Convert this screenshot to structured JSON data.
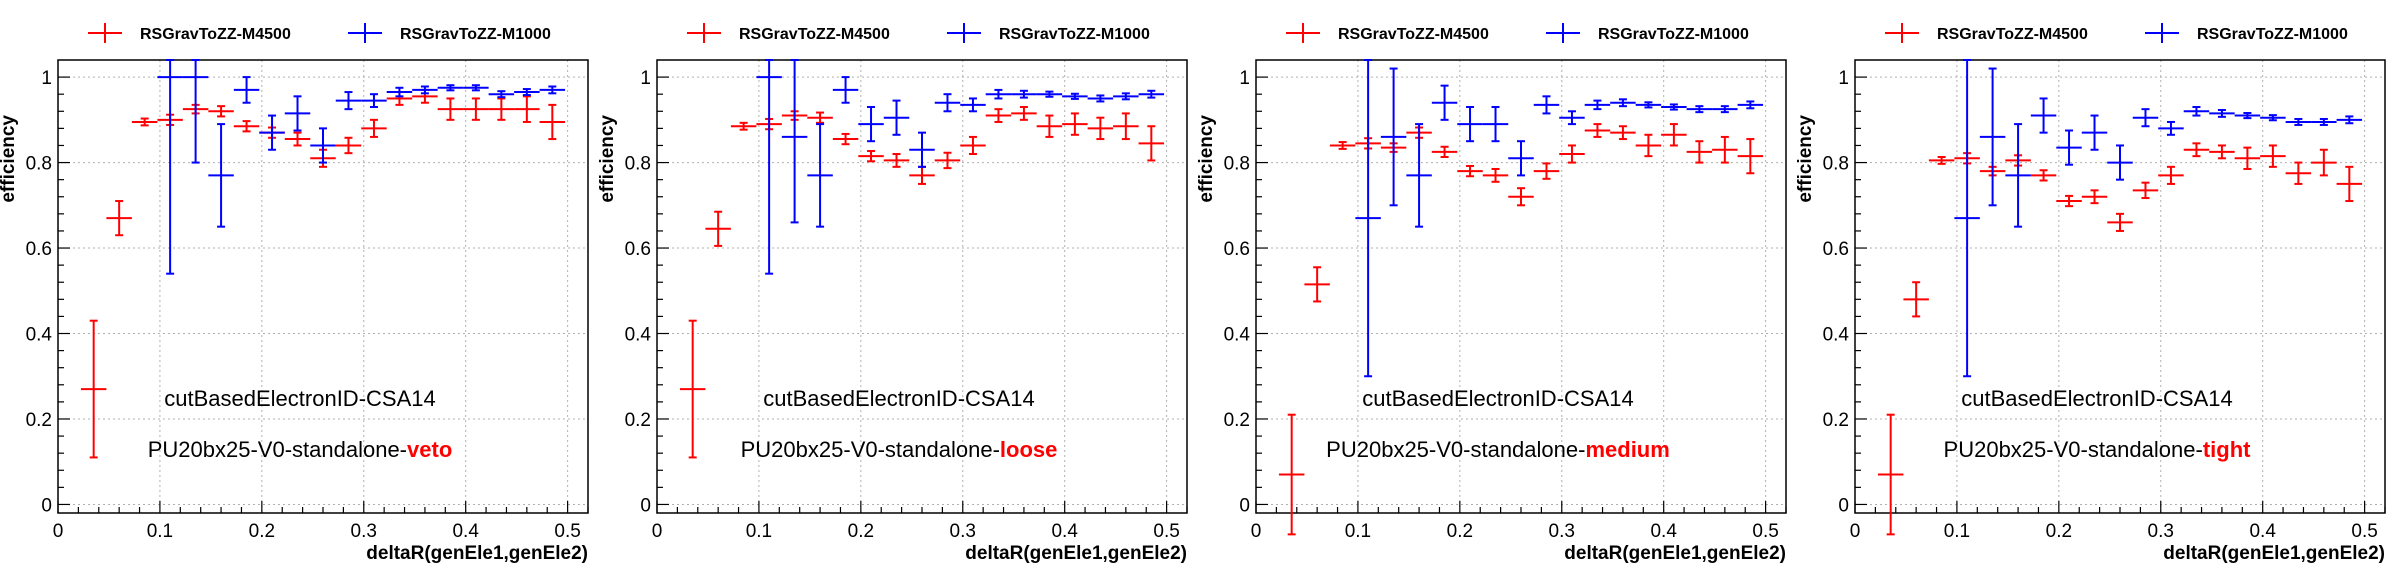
{
  "chart_data": [
    {
      "type": "scatter",
      "xlabel": "deltaR(genEle1,genEle2)",
      "ylabel": "efficiency",
      "xlim": [
        0,
        0.52
      ],
      "ylim": [
        -0.02,
        1.04
      ],
      "xticks": [
        "0",
        "0.1",
        "0.2",
        "0.3",
        "0.4",
        "0.5"
      ],
      "yticks": [
        "0",
        "0.2",
        "0.4",
        "0.6",
        "0.8",
        "1"
      ],
      "annotation_line1": "cutBasedElectronID-CSA14",
      "annotation_prefix": "PU20bx25-V0-standalone-",
      "annotation_wp": "veto",
      "legend_position": "top",
      "series": [
        {
          "name": "RSGravToZZ-M4500",
          "color": "#ff0000",
          "x": [
            0.035,
            0.06,
            0.085,
            0.11,
            0.135,
            0.16,
            0.185,
            0.21,
            0.235,
            0.26,
            0.285,
            0.31,
            0.335,
            0.36,
            0.385,
            0.41,
            0.435,
            0.46,
            0.485
          ],
          "y": [
            0.27,
            0.67,
            0.895,
            0.9,
            0.925,
            0.92,
            0.885,
            0.87,
            0.855,
            0.81,
            0.84,
            0.88,
            0.95,
            0.955,
            0.925,
            0.925,
            0.925,
            0.925,
            0.895
          ],
          "yerr": [
            0.16,
            0.04,
            0.008,
            0.012,
            0.01,
            0.012,
            0.012,
            0.012,
            0.015,
            0.02,
            0.018,
            0.02,
            0.015,
            0.015,
            0.025,
            0.025,
            0.025,
            0.03,
            0.04
          ]
        },
        {
          "name": "RSGravToZZ-M1000",
          "color": "#0000ff",
          "x": [
            0.11,
            0.135,
            0.16,
            0.185,
            0.21,
            0.235,
            0.26,
            0.285,
            0.31,
            0.335,
            0.36,
            0.385,
            0.41,
            0.435,
            0.46,
            0.485
          ],
          "y": [
            1.0,
            1.0,
            0.77,
            0.97,
            0.87,
            0.915,
            0.84,
            0.945,
            0.945,
            0.965,
            0.97,
            0.975,
            0.975,
            0.96,
            0.965,
            0.97
          ],
          "yerr": [
            0.46,
            0.2,
            0.12,
            0.03,
            0.04,
            0.04,
            0.04,
            0.02,
            0.015,
            0.01,
            0.008,
            0.006,
            0.006,
            0.007,
            0.007,
            0.008
          ]
        }
      ]
    },
    {
      "type": "scatter",
      "xlabel": "deltaR(genEle1,genEle2)",
      "ylabel": "efficiency",
      "xlim": [
        0,
        0.52
      ],
      "ylim": [
        -0.02,
        1.04
      ],
      "xticks": [
        "0",
        "0.1",
        "0.2",
        "0.3",
        "0.4",
        "0.5"
      ],
      "yticks": [
        "0",
        "0.2",
        "0.4",
        "0.6",
        "0.8",
        "1"
      ],
      "annotation_line1": "cutBasedElectronID-CSA14",
      "annotation_prefix": "PU20bx25-V0-standalone-",
      "annotation_wp": "loose",
      "legend_position": "top",
      "series": [
        {
          "name": "RSGravToZZ-M4500",
          "color": "#ff0000",
          "x": [
            0.035,
            0.06,
            0.085,
            0.11,
            0.135,
            0.16,
            0.185,
            0.21,
            0.235,
            0.26,
            0.285,
            0.31,
            0.335,
            0.36,
            0.385,
            0.41,
            0.435,
            0.46,
            0.485
          ],
          "y": [
            0.27,
            0.645,
            0.885,
            0.89,
            0.91,
            0.905,
            0.855,
            0.815,
            0.805,
            0.77,
            0.805,
            0.84,
            0.91,
            0.915,
            0.885,
            0.89,
            0.88,
            0.885,
            0.845
          ],
          "yerr": [
            0.16,
            0.04,
            0.008,
            0.012,
            0.01,
            0.012,
            0.012,
            0.012,
            0.015,
            0.02,
            0.018,
            0.02,
            0.015,
            0.015,
            0.025,
            0.025,
            0.025,
            0.03,
            0.04
          ]
        },
        {
          "name": "RSGravToZZ-M1000",
          "color": "#0000ff",
          "x": [
            0.11,
            0.135,
            0.16,
            0.185,
            0.21,
            0.235,
            0.26,
            0.285,
            0.31,
            0.335,
            0.36,
            0.385,
            0.41,
            0.435,
            0.46,
            0.485
          ],
          "y": [
            1.0,
            0.86,
            0.77,
            0.97,
            0.89,
            0.905,
            0.83,
            0.94,
            0.935,
            0.96,
            0.96,
            0.96,
            0.955,
            0.95,
            0.955,
            0.96
          ],
          "yerr": [
            0.46,
            0.2,
            0.12,
            0.03,
            0.04,
            0.04,
            0.04,
            0.02,
            0.015,
            0.01,
            0.008,
            0.006,
            0.006,
            0.007,
            0.007,
            0.008
          ]
        }
      ]
    },
    {
      "type": "scatter",
      "xlabel": "deltaR(genEle1,genEle2)",
      "ylabel": "efficiency",
      "xlim": [
        0,
        0.52
      ],
      "ylim": [
        -0.02,
        1.04
      ],
      "xticks": [
        "0",
        "0.1",
        "0.2",
        "0.3",
        "0.4",
        "0.5"
      ],
      "yticks": [
        "0",
        "0.2",
        "0.4",
        "0.6",
        "0.8",
        "1"
      ],
      "annotation_line1": "cutBasedElectronID-CSA14",
      "annotation_prefix": "PU20bx25-V0-standalone-",
      "annotation_wp": "medium",
      "legend_position": "top",
      "series": [
        {
          "name": "RSGravToZZ-M4500",
          "color": "#ff0000",
          "x": [
            0.035,
            0.06,
            0.085,
            0.11,
            0.135,
            0.16,
            0.185,
            0.21,
            0.235,
            0.26,
            0.285,
            0.31,
            0.335,
            0.36,
            0.385,
            0.41,
            0.435,
            0.46,
            0.485
          ],
          "y": [
            0.07,
            0.515,
            0.84,
            0.845,
            0.835,
            0.87,
            0.825,
            0.78,
            0.77,
            0.72,
            0.78,
            0.82,
            0.875,
            0.87,
            0.84,
            0.865,
            0.825,
            0.83,
            0.815
          ],
          "yerr": [
            0.14,
            0.04,
            0.008,
            0.012,
            0.01,
            0.012,
            0.012,
            0.012,
            0.015,
            0.02,
            0.018,
            0.02,
            0.015,
            0.015,
            0.025,
            0.025,
            0.025,
            0.03,
            0.04
          ]
        },
        {
          "name": "RSGravToZZ-M1000",
          "color": "#0000ff",
          "x": [
            0.11,
            0.135,
            0.16,
            0.185,
            0.21,
            0.235,
            0.26,
            0.285,
            0.31,
            0.335,
            0.36,
            0.385,
            0.41,
            0.435,
            0.46,
            0.485
          ],
          "y": [
            0.67,
            0.86,
            0.77,
            0.94,
            0.89,
            0.89,
            0.81,
            0.935,
            0.905,
            0.935,
            0.94,
            0.935,
            0.93,
            0.925,
            0.925,
            0.935
          ],
          "yerr": [
            0.37,
            0.16,
            0.12,
            0.04,
            0.04,
            0.04,
            0.04,
            0.02,
            0.015,
            0.01,
            0.008,
            0.006,
            0.006,
            0.007,
            0.007,
            0.008
          ]
        }
      ]
    },
    {
      "type": "scatter",
      "xlabel": "deltaR(genEle1,genEle2)",
      "ylabel": "efficiency",
      "xlim": [
        0,
        0.52
      ],
      "ylim": [
        -0.02,
        1.04
      ],
      "xticks": [
        "0",
        "0.1",
        "0.2",
        "0.3",
        "0.4",
        "0.5"
      ],
      "yticks": [
        "0",
        "0.2",
        "0.4",
        "0.6",
        "0.8",
        "1"
      ],
      "annotation_line1": "cutBasedElectronID-CSA14",
      "annotation_prefix": "PU20bx25-V0-standalone-",
      "annotation_wp": "tight",
      "legend_position": "top",
      "series": [
        {
          "name": "RSGravToZZ-M4500",
          "color": "#ff0000",
          "x": [
            0.035,
            0.06,
            0.085,
            0.11,
            0.135,
            0.16,
            0.185,
            0.21,
            0.235,
            0.26,
            0.285,
            0.31,
            0.335,
            0.36,
            0.385,
            0.41,
            0.435,
            0.46,
            0.485
          ],
          "y": [
            0.07,
            0.48,
            0.805,
            0.81,
            0.78,
            0.805,
            0.77,
            0.71,
            0.72,
            0.66,
            0.735,
            0.77,
            0.83,
            0.825,
            0.81,
            0.815,
            0.775,
            0.8,
            0.75
          ],
          "yerr": [
            0.14,
            0.04,
            0.008,
            0.012,
            0.01,
            0.012,
            0.012,
            0.012,
            0.015,
            0.02,
            0.018,
            0.02,
            0.015,
            0.015,
            0.025,
            0.025,
            0.025,
            0.03,
            0.04
          ]
        },
        {
          "name": "RSGravToZZ-M1000",
          "color": "#0000ff",
          "x": [
            0.11,
            0.135,
            0.16,
            0.185,
            0.21,
            0.235,
            0.26,
            0.285,
            0.31,
            0.335,
            0.36,
            0.385,
            0.41,
            0.435,
            0.46,
            0.485
          ],
          "y": [
            0.67,
            0.86,
            0.77,
            0.91,
            0.835,
            0.87,
            0.8,
            0.905,
            0.88,
            0.92,
            0.915,
            0.91,
            0.905,
            0.895,
            0.895,
            0.9
          ],
          "yerr": [
            0.37,
            0.16,
            0.12,
            0.04,
            0.04,
            0.04,
            0.04,
            0.02,
            0.015,
            0.01,
            0.008,
            0.006,
            0.006,
            0.007,
            0.007,
            0.008
          ]
        }
      ]
    }
  ]
}
